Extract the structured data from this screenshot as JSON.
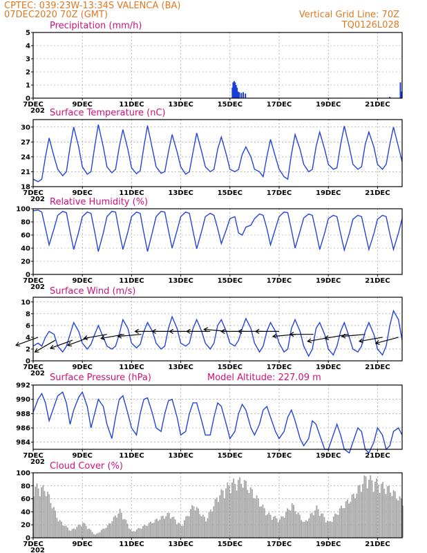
{
  "header": {
    "station_line": "CPTEC:   039:23W-13:34S   VALENCA (BA)",
    "date_line": "07DEC2020 70Z (GMT)",
    "grid_note": "Vertical Grid Line: 70Z",
    "code": "TQ0126L028"
  },
  "colors": {
    "header": "#e07820",
    "titles": "#d0107a",
    "series_line": "#2244dd",
    "precip_bars": "#1a3fd6",
    "cloud_bars": "#a8a8a8",
    "wind_arrows": "#000000"
  },
  "x_axis": {
    "labels": [
      "7DEC",
      "9DEC",
      "11DEC",
      "13DEC",
      "15DEC",
      "17DEC",
      "19DEC",
      "21DEC"
    ],
    "label_days": [
      0,
      2,
      4,
      6,
      8,
      10,
      12,
      14
    ],
    "range_days": [
      0,
      15
    ],
    "year_fragment": "202"
  },
  "chart_data": [
    {
      "type": "bar",
      "title": "Precipitation (mm/h)",
      "ylim": [
        0,
        5
      ],
      "yticks": [
        0,
        1,
        2,
        3,
        4,
        5
      ],
      "grid": true,
      "x_days": [
        8.1,
        8.13,
        8.17,
        8.21,
        8.25,
        8.29,
        8.33,
        8.38,
        8.46,
        8.54,
        8.63,
        12.5,
        13.4,
        14.5,
        14.93,
        14.96
      ],
      "values": [
        0.8,
        1.2,
        1.3,
        1.2,
        1.0,
        0.8,
        0.5,
        0.45,
        0.4,
        0.45,
        0.35,
        0.03,
        0.03,
        0.1,
        1.2,
        0.5
      ]
    },
    {
      "type": "line",
      "title": "Surface Temperature (nC)",
      "ylim": [
        18,
        31.5
      ],
      "yticks": [
        18,
        21,
        24,
        27,
        30
      ],
      "grid": true,
      "x_days": [
        0,
        0.2,
        0.35,
        0.5,
        0.65,
        0.85,
        1.0,
        1.2,
        1.35,
        1.5,
        1.65,
        1.85,
        2.0,
        2.2,
        2.35,
        2.5,
        2.65,
        2.85,
        3.0,
        3.2,
        3.35,
        3.5,
        3.65,
        3.85,
        4.0,
        4.2,
        4.35,
        4.5,
        4.65,
        4.85,
        5.0,
        5.2,
        5.35,
        5.5,
        5.65,
        5.85,
        6.0,
        6.2,
        6.35,
        6.5,
        6.65,
        6.85,
        7.0,
        7.2,
        7.35,
        7.5,
        7.65,
        7.85,
        8.0,
        8.2,
        8.35,
        8.5,
        8.65,
        8.85,
        9.0,
        9.2,
        9.35,
        9.5,
        9.65,
        9.85,
        10.0,
        10.2,
        10.35,
        10.5,
        10.65,
        10.85,
        11.0,
        11.2,
        11.35,
        11.5,
        11.65,
        11.85,
        12.0,
        12.2,
        12.35,
        12.5,
        12.65,
        12.85,
        13.0,
        13.2,
        13.35,
        13.5,
        13.65,
        13.85,
        14.0,
        14.2,
        14.35,
        14.5,
        14.65,
        14.85,
        15.0
      ],
      "values": [
        19.5,
        19.0,
        19.5,
        24.0,
        27.8,
        24.0,
        21.5,
        20.2,
        21.0,
        26.0,
        30.0,
        26.0,
        22.0,
        20.5,
        21.0,
        26.0,
        30.5,
        26.0,
        22.0,
        20.8,
        21.5,
        26.0,
        29.5,
        25.5,
        21.8,
        20.6,
        21.2,
        26.0,
        30.3,
        25.5,
        22.0,
        20.7,
        21.0,
        25.0,
        28.5,
        25.0,
        22.0,
        20.5,
        21.0,
        25.0,
        28.8,
        25.0,
        22.0,
        21.0,
        21.5,
        25.5,
        28.0,
        24.5,
        21.5,
        21.0,
        21.5,
        24.5,
        26.0,
        24.0,
        21.5,
        21.0,
        20.0,
        24.0,
        27.5,
        24.0,
        21.5,
        20.0,
        19.5,
        24.5,
        28.5,
        25.5,
        22.5,
        21.0,
        21.5,
        26.0,
        29.0,
        25.5,
        22.5,
        21.5,
        21.8,
        26.5,
        30.2,
        26.0,
        22.5,
        21.5,
        22.0,
        26.5,
        29.0,
        26.0,
        22.5,
        21.5,
        22.5,
        26.5,
        30.0,
        26.0,
        23.0
      ]
    },
    {
      "type": "line",
      "title": "Relative Humidity (%)",
      "ylim": [
        0,
        100
      ],
      "yticks": [
        0,
        20,
        40,
        60,
        80,
        100
      ],
      "grid": true,
      "x_days": [
        0,
        0.2,
        0.35,
        0.5,
        0.65,
        0.85,
        1.0,
        1.2,
        1.35,
        1.5,
        1.65,
        1.85,
        2.0,
        2.2,
        2.35,
        2.5,
        2.65,
        2.85,
        3.0,
        3.2,
        3.35,
        3.5,
        3.65,
        3.85,
        4.0,
        4.2,
        4.35,
        4.5,
        4.65,
        4.85,
        5.0,
        5.2,
        5.35,
        5.5,
        5.65,
        5.85,
        6.0,
        6.2,
        6.35,
        6.5,
        6.65,
        6.85,
        7.0,
        7.2,
        7.35,
        7.5,
        7.65,
        7.85,
        8.0,
        8.2,
        8.35,
        8.5,
        8.65,
        8.85,
        9.0,
        9.2,
        9.35,
        9.5,
        9.65,
        9.85,
        10.0,
        10.2,
        10.35,
        10.5,
        10.65,
        10.85,
        11.0,
        11.2,
        11.35,
        11.5,
        11.65,
        11.85,
        12.0,
        12.2,
        12.35,
        12.5,
        12.65,
        12.85,
        13.0,
        13.2,
        13.35,
        13.5,
        13.65,
        13.85,
        14.0,
        14.2,
        14.35,
        14.5,
        14.65,
        14.85,
        15.0
      ],
      "values": [
        97,
        98,
        95,
        70,
        45,
        70,
        90,
        96,
        94,
        65,
        38,
        65,
        88,
        95,
        93,
        65,
        35,
        63,
        88,
        96,
        95,
        65,
        38,
        65,
        88,
        95,
        93,
        63,
        35,
        65,
        88,
        96,
        95,
        67,
        40,
        67,
        88,
        95,
        93,
        66,
        39,
        66,
        88,
        93,
        90,
        70,
        47,
        68,
        85,
        88,
        63,
        60,
        72,
        75,
        85,
        92,
        90,
        70,
        45,
        70,
        88,
        95,
        94,
        68,
        40,
        66,
        86,
        92,
        90,
        65,
        38,
        63,
        85,
        90,
        88,
        62,
        37,
        62,
        84,
        90,
        88,
        63,
        38,
        62,
        84,
        90,
        88,
        62,
        38,
        63,
        85
      ]
    },
    {
      "type": "line",
      "title": "Surface Wind (m/s)",
      "ylim": [
        0,
        10.8
      ],
      "yticks": [
        0,
        2,
        4,
        6,
        8,
        10
      ],
      "grid": true,
      "x_days": [
        0,
        0.2,
        0.35,
        0.5,
        0.65,
        0.85,
        1.0,
        1.2,
        1.35,
        1.5,
        1.65,
        1.85,
        2.0,
        2.2,
        2.35,
        2.5,
        2.65,
        2.85,
        3.0,
        3.2,
        3.35,
        3.5,
        3.65,
        3.85,
        4.0,
        4.2,
        4.35,
        4.5,
        4.65,
        4.85,
        5.0,
        5.2,
        5.35,
        5.5,
        5.65,
        5.85,
        6.0,
        6.2,
        6.35,
        6.5,
        6.65,
        6.85,
        7.0,
        7.2,
        7.35,
        7.5,
        7.65,
        7.85,
        8.0,
        8.2,
        8.35,
        8.5,
        8.65,
        8.85,
        9.0,
        9.2,
        9.35,
        9.5,
        9.65,
        9.85,
        10.0,
        10.2,
        10.35,
        10.5,
        10.65,
        10.85,
        11.0,
        11.2,
        11.35,
        11.5,
        11.65,
        11.85,
        12.0,
        12.2,
        12.35,
        12.5,
        12.65,
        12.85,
        13.0,
        13.2,
        13.35,
        13.5,
        13.65,
        13.85,
        14.0,
        14.2,
        14.35,
        14.5,
        14.65,
        14.85,
        15.0
      ],
      "values": [
        2.5,
        3.0,
        2.5,
        4.0,
        5.0,
        4.5,
        2.5,
        1.5,
        2.5,
        4.5,
        6.5,
        5.0,
        3.0,
        2.0,
        2.8,
        4.5,
        6.0,
        4.0,
        2.5,
        2.0,
        2.5,
        4.5,
        7.0,
        5.5,
        3.0,
        2.2,
        2.8,
        5.0,
        6.5,
        5.0,
        3.0,
        2.0,
        2.5,
        5.5,
        7.5,
        5.5,
        3.0,
        2.5,
        3.0,
        5.5,
        7.0,
        5.0,
        3.0,
        2.0,
        3.0,
        6.0,
        7.0,
        5.0,
        3.0,
        2.5,
        3.5,
        5.5,
        7.2,
        5.5,
        3.0,
        1.5,
        2.5,
        5.0,
        6.5,
        5.0,
        3.0,
        1.5,
        2.0,
        5.5,
        7.0,
        5.0,
        2.5,
        0.8,
        2.0,
        5.5,
        6.5,
        4.5,
        2.0,
        1.0,
        2.5,
        5.0,
        6.5,
        4.0,
        2.0,
        1.5,
        2.5,
        5.0,
        6.5,
        4.5,
        2.0,
        1.0,
        2.5,
        6.0,
        8.5,
        7.0,
        3.5
      ],
      "arrows_x_days": [
        0.2,
        0.9,
        1.6,
        2.3,
        3.0,
        3.7,
        4.4,
        5.1,
        5.8,
        6.5,
        7.2,
        7.9,
        8.6,
        9.3,
        10.0,
        10.7,
        11.4,
        12.1,
        12.8,
        13.5,
        14.2,
        14.85
      ],
      "arrows_speed": [
        4.0,
        3.5,
        3.5,
        4.0,
        4.5,
        4.5,
        4.5,
        5.0,
        5.0,
        5.0,
        5.0,
        5.0,
        5.0,
        5.0,
        5.0,
        4.5,
        4.5,
        4.0,
        4.5,
        4.5,
        4.0,
        4.0
      ],
      "arrows_dir_deg": [
        200,
        210,
        200,
        200,
        190,
        190,
        185,
        180,
        180,
        180,
        180,
        175,
        180,
        180,
        180,
        185,
        180,
        190,
        190,
        185,
        190,
        195
      ]
    },
    {
      "type": "line",
      "title": "Surface Pressure (hPa)",
      "subtitle": "Model Altitude: 227.09 m",
      "ylim": [
        983,
        992
      ],
      "yticks": [
        984,
        986,
        988,
        990,
        992
      ],
      "grid": true,
      "x_days": [
        0,
        0.2,
        0.35,
        0.5,
        0.65,
        0.85,
        1.0,
        1.2,
        1.35,
        1.5,
        1.65,
        1.85,
        2.0,
        2.2,
        2.35,
        2.5,
        2.65,
        2.85,
        3.0,
        3.2,
        3.35,
        3.5,
        3.65,
        3.85,
        4.0,
        4.2,
        4.35,
        4.5,
        4.65,
        4.85,
        5.0,
        5.2,
        5.35,
        5.5,
        5.65,
        5.85,
        6.0,
        6.2,
        6.35,
        6.5,
        6.65,
        6.85,
        7.0,
        7.2,
        7.35,
        7.5,
        7.65,
        7.85,
        8.0,
        8.2,
        8.35,
        8.5,
        8.65,
        8.85,
        9.0,
        9.2,
        9.35,
        9.5,
        9.65,
        9.85,
        10.0,
        10.2,
        10.35,
        10.5,
        10.65,
        10.85,
        11.0,
        11.2,
        11.35,
        11.5,
        11.65,
        11.85,
        12.0,
        12.2,
        12.35,
        12.5,
        12.65,
        12.85,
        13.0,
        13.2,
        13.35,
        13.5,
        13.65,
        13.85,
        14.0,
        14.2,
        14.35,
        14.5,
        14.65,
        14.85,
        15.0
      ],
      "values": [
        988.2,
        990.0,
        990.8,
        989.5,
        987.0,
        989.0,
        990.5,
        991.0,
        989.5,
        986.5,
        988.5,
        990.3,
        991.0,
        989.0,
        986.0,
        988.0,
        990.0,
        989.0,
        986.5,
        984.5,
        987.5,
        990.0,
        990.5,
        988.0,
        986.0,
        985.0,
        988.0,
        990.0,
        990.2,
        988.0,
        986.0,
        985.5,
        988.0,
        989.8,
        990.0,
        987.5,
        985.0,
        985.5,
        988.0,
        989.5,
        989.5,
        987.0,
        985.0,
        985.0,
        987.5,
        989.5,
        989.0,
        986.5,
        984.5,
        985.5,
        988.0,
        989.3,
        988.5,
        986.0,
        985.0,
        986.5,
        988.5,
        989.0,
        987.5,
        985.5,
        984.5,
        985.5,
        987.5,
        988.5,
        987.0,
        984.5,
        983.5,
        984.5,
        987.0,
        986.5,
        985.0,
        983.0,
        983.0,
        985.0,
        986.5,
        985.0,
        983.0,
        982.5,
        984.0,
        986.0,
        985.5,
        983.0,
        982.5,
        984.0,
        986.0,
        985.0,
        983.0,
        983.5,
        985.5,
        986.0,
        985.0
      ]
    },
    {
      "type": "bar",
      "title": "Cloud Cover (%)",
      "ylim": [
        0,
        100
      ],
      "yticks": [
        0,
        20,
        40,
        60,
        80,
        100
      ],
      "grid": true,
      "x_days": [
        0,
        0.5,
        1.0,
        1.5,
        2.0,
        2.5,
        3.0,
        3.5,
        4.0,
        4.5,
        5.0,
        5.5,
        6.0,
        6.5,
        7.0,
        7.5,
        8.0,
        8.5,
        9.0,
        9.5,
        10.0,
        10.5,
        11.0,
        11.5,
        12.0,
        12.5,
        13.0,
        13.5,
        14.0,
        14.5,
        15.0
      ],
      "values": [
        85,
        80,
        30,
        12,
        25,
        5,
        20,
        45,
        10,
        20,
        30,
        40,
        20,
        55,
        30,
        70,
        90,
        95,
        70,
        40,
        30,
        55,
        25,
        50,
        25,
        50,
        70,
        100,
        90,
        80,
        60
      ]
    }
  ]
}
